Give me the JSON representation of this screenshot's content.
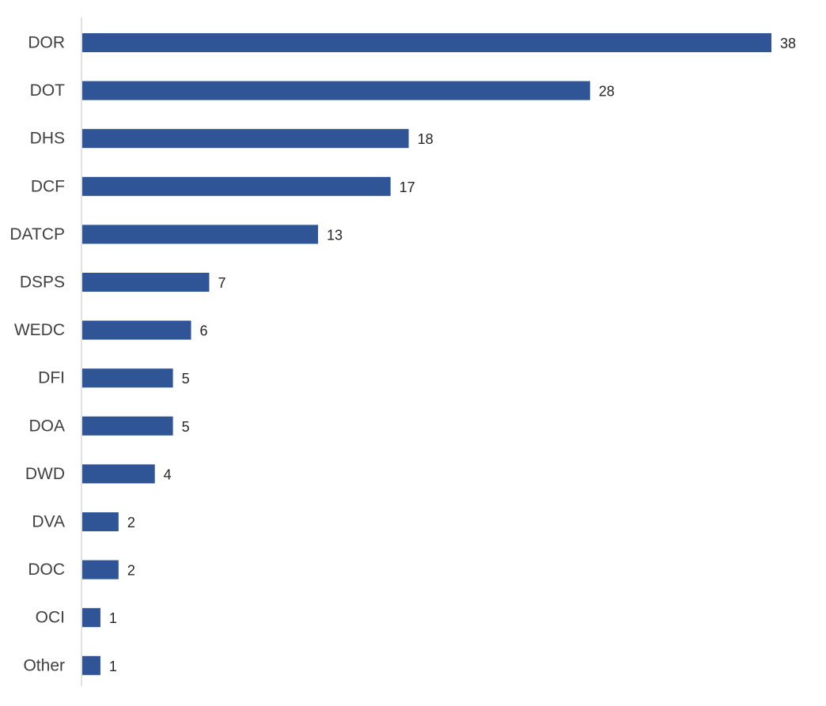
{
  "chart_data": {
    "type": "bar",
    "orientation": "horizontal",
    "categories": [
      "DOR",
      "DOT",
      "DHS",
      "DCF",
      "DATCP",
      "DSPS",
      "WEDC",
      "DFI",
      "DOA",
      "DWD",
      "DVA",
      "DOC",
      "OCI",
      "Other"
    ],
    "values": [
      38,
      28,
      18,
      17,
      13,
      7,
      6,
      5,
      5,
      4,
      2,
      2,
      1,
      1
    ],
    "data_labels": [
      "38",
      "28",
      "18",
      "17",
      "13",
      "7",
      "6",
      "5",
      "5",
      "4",
      "2",
      "2",
      "1",
      "1"
    ],
    "title": "",
    "xlabel": "",
    "ylabel": "",
    "xlim": [
      0,
      38
    ],
    "grid": false,
    "legend": "none",
    "colors": {
      "bar": "#2F5597",
      "axis": "#D9D9D9",
      "category_text": "#404040",
      "value_text": "#262626"
    }
  }
}
